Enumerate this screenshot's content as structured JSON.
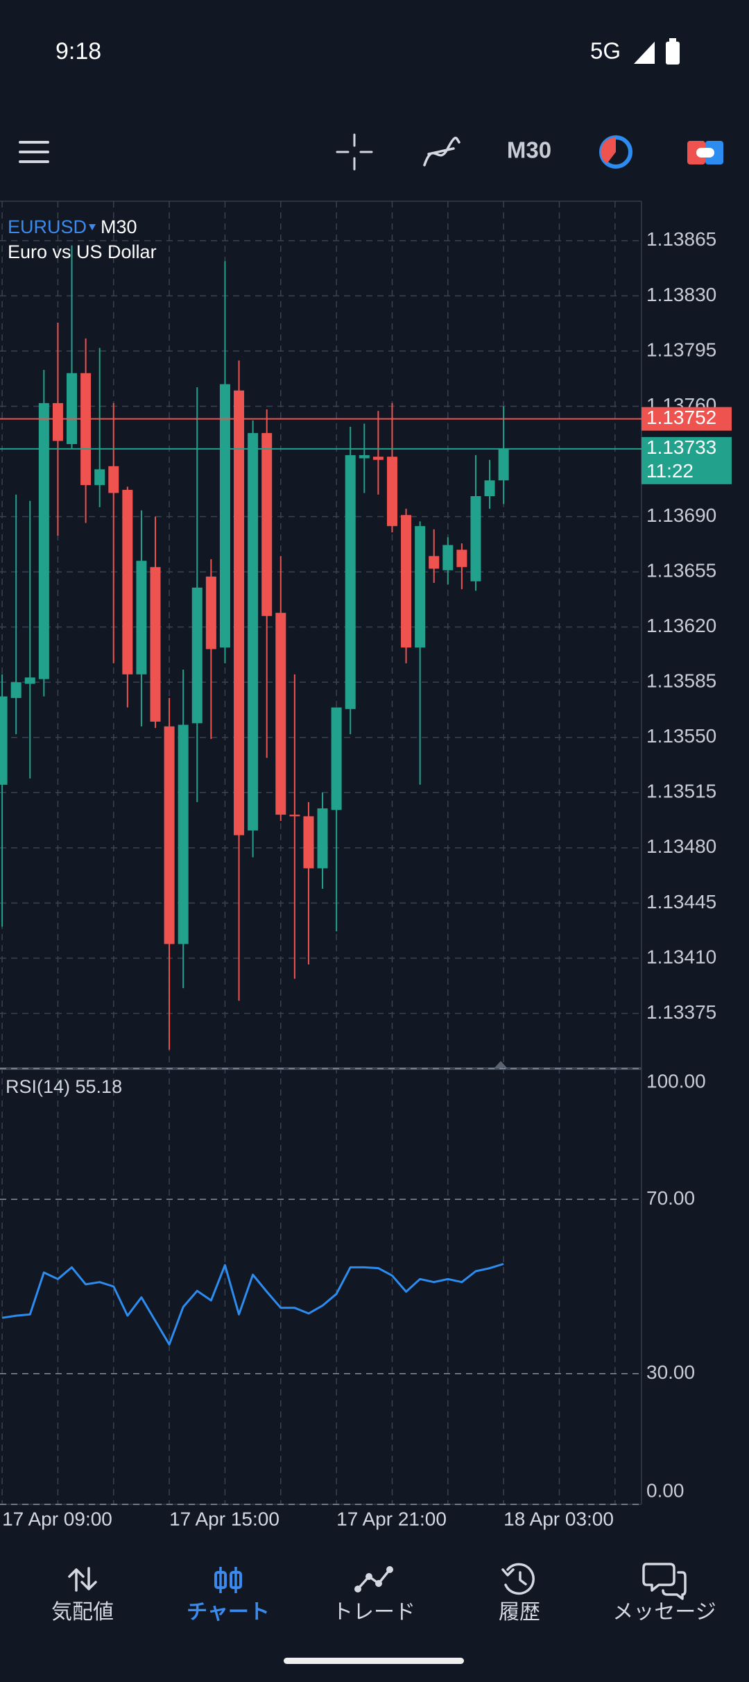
{
  "status": {
    "time": "9:18",
    "network": "5G"
  },
  "toolbar": {
    "timeframe": "M30"
  },
  "nav": [
    {
      "label": "気配値"
    },
    {
      "label": "チャート"
    },
    {
      "label": "トレード"
    },
    {
      "label": "履歴"
    },
    {
      "label": "メッセージ"
    }
  ],
  "chart_data": [
    {
      "type": "candlestick",
      "title": "EURUSD",
      "timeframe": "M30",
      "subtitle": "Euro vs US Dollar",
      "categories": [
        "17 Apr 09:00",
        null,
        null,
        null,
        null,
        null,
        null,
        null,
        null,
        null,
        null,
        null,
        "17 Apr 15:00",
        null,
        null,
        null,
        null,
        null,
        null,
        null,
        null,
        null,
        null,
        null,
        "17 Apr 21:00",
        null,
        null,
        null,
        null,
        null,
        null,
        null,
        null,
        null,
        null,
        null,
        "18 Apr 03:00"
      ],
      "open": [
        1.1352,
        1.13575,
        1.13584,
        1.13587,
        1.13762,
        1.13736,
        1.13781,
        1.1371,
        1.13722,
        1.13707,
        1.1359,
        1.13658,
        1.13557,
        1.13419,
        1.13559,
        1.13652,
        1.13607,
        1.1377,
        1.13491,
        1.13743,
        1.13629,
        1.13501,
        1.135,
        1.13467,
        1.13504,
        1.13568,
        1.13727,
        1.13728,
        1.13728,
        1.13691,
        1.13607,
        1.13665,
        1.13656,
        1.13669,
        1.13649,
        1.13703,
        1.13713
      ],
      "high": [
        1.1359,
        1.13704,
        1.137,
        1.13783,
        1.13813,
        1.13862,
        1.13803,
        1.13797,
        1.13762,
        1.13709,
        1.13694,
        1.1369,
        1.13575,
        1.13593,
        1.13772,
        1.13663,
        1.13852,
        1.13789,
        1.13751,
        1.13758,
        1.13665,
        1.1359,
        1.13509,
        1.13515,
        1.13569,
        1.13747,
        1.13749,
        1.13757,
        1.13762,
        1.13695,
        1.13687,
        1.13682,
        1.13677,
        1.13673,
        1.13729,
        1.13726,
        1.1376
      ],
      "low": [
        1.1343,
        1.13552,
        1.13524,
        1.13576,
        1.13678,
        1.13733,
        1.13686,
        1.13696,
        1.13597,
        1.13569,
        1.13557,
        1.13556,
        1.13352,
        1.13391,
        1.13509,
        1.13549,
        1.13597,
        1.13383,
        1.13474,
        1.13537,
        1.13497,
        1.13397,
        1.13406,
        1.13454,
        1.13427,
        1.13552,
        1.13705,
        1.13704,
        1.1368,
        1.13597,
        1.1352,
        1.13648,
        1.13647,
        1.13644,
        1.13643,
        1.13695,
        1.13698
      ],
      "close": [
        1.13576,
        1.13585,
        1.13588,
        1.13762,
        1.13738,
        1.13781,
        1.1371,
        1.1372,
        1.13705,
        1.1359,
        1.13662,
        1.1356,
        1.13419,
        1.13558,
        1.13645,
        1.13606,
        1.13774,
        1.13488,
        1.13743,
        1.13627,
        1.13501,
        1.135,
        1.13467,
        1.13505,
        1.13569,
        1.13729,
        1.13729,
        1.13726,
        1.13684,
        1.13607,
        1.13684,
        1.13657,
        1.13672,
        1.13658,
        1.13703,
        1.13713,
        1.13733
      ],
      "up_color": "#22a28c",
      "down_color": "#ef5350",
      "ylim": [
        1.1334,
        1.1389
      ],
      "yticks": [
        1.13865,
        {
          "value": 1.1383,
          "label": "1.13830"
        },
        1.13795,
        {
          "value": 1.1376,
          "label": "1.13760"
        },
        {
          "value": 1.1369,
          "label": "1.13690"
        },
        1.13655,
        {
          "value": 1.1362,
          "label": "1.13620"
        },
        1.13585,
        {
          "value": 1.1355,
          "label": "1.13550"
        },
        1.13515,
        {
          "value": 1.1348,
          "label": "1.13480"
        },
        1.13445,
        {
          "value": 1.1341,
          "label": "1.13410"
        },
        1.13375
      ],
      "grid": true,
      "ask": 1.13752,
      "ask_color": "#ef5350",
      "bid": 1.13733,
      "bid_color": "#22a28c",
      "bid_timer": "11:22"
    },
    {
      "type": "line",
      "title": "RSI(14) 55.18",
      "values": [
        42.8,
        43.3,
        43.6,
        53.2,
        51.7,
        54.4,
        50.5,
        51.0,
        50.0,
        43.3,
        47.5,
        42.1,
        36.7,
        45.3,
        49.0,
        46.8,
        54.9,
        43.6,
        52.7,
        48.8,
        45.1,
        45.1,
        43.8,
        45.6,
        48.3,
        54.4,
        54.4,
        54.2,
        52.5,
        48.8,
        51.7,
        51.0,
        51.7,
        51.0,
        53.5,
        54.2,
        55.18
      ],
      "color": "#2d8cf0",
      "ylim": [
        0,
        100
      ],
      "yticks": [
        {
          "value": 100,
          "label": "100.00"
        },
        {
          "value": 70,
          "label": "70.00"
        },
        {
          "value": 30,
          "label": "30.00"
        },
        {
          "value": 0,
          "label": "0.00"
        }
      ]
    }
  ]
}
